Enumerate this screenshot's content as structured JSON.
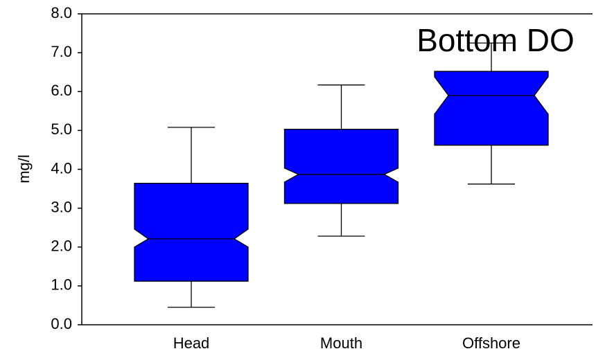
{
  "chart_data": {
    "type": "boxplot",
    "title": "Bottom DO",
    "y_label": "mg/l",
    "color": "#0000ff",
    "categories": [
      "Head",
      "Mouth",
      "Offshore"
    ],
    "whisker_low": [
      0.45,
      2.28,
      3.62
    ],
    "q1": [
      1.12,
      3.12,
      4.62
    ],
    "notch_low": [
      2.0,
      3.67,
      5.42
    ],
    "median": [
      2.21,
      3.87,
      5.9
    ],
    "notch_high": [
      2.46,
      4.03,
      6.38
    ],
    "q3": [
      3.64,
      5.03,
      6.52
    ],
    "whisker_high": [
      5.08,
      6.17,
      7.25
    ],
    "ylim": [
      0,
      8
    ],
    "yticks": [
      {
        "value": 0,
        "label": "0.0"
      },
      {
        "value": 1,
        "label": "1.0"
      },
      {
        "value": 2,
        "label": "2.0"
      },
      {
        "value": 3,
        "label": "3.0"
      },
      {
        "value": 4,
        "label": "4.0"
      },
      {
        "value": 5,
        "label": "5.0"
      },
      {
        "value": 6,
        "label": "6.0"
      },
      {
        "value": 7,
        "label": "7.0"
      },
      {
        "value": 8,
        "label": "8.0"
      }
    ]
  }
}
